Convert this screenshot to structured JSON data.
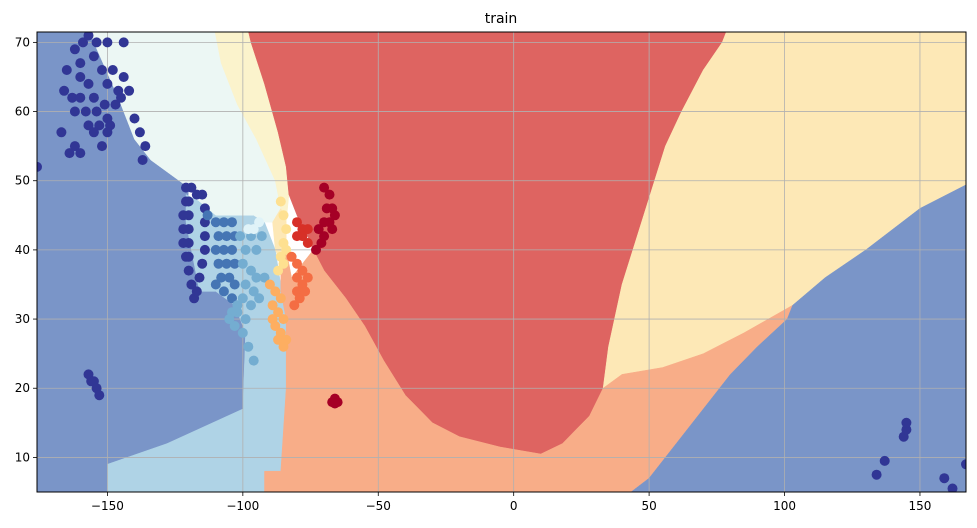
{
  "chart_data": {
    "type": "scatter",
    "title": "train",
    "xlabel": "",
    "ylabel": "",
    "xlim": [
      -176,
      167
    ],
    "ylim": [
      5,
      71.5
    ],
    "xticks": [
      -150,
      -100,
      -50,
      0,
      50,
      100,
      150
    ],
    "yticks": [
      10,
      20,
      30,
      40,
      50,
      60,
      70
    ],
    "grid": true,
    "background": "decision regions (filled contour)",
    "region_colors": {
      "dark_blue": "#7a95c8",
      "light_blue": "#afd3e6",
      "pale_cyan": "#ecf7f4",
      "pale_yellow": "#fbf3cc",
      "yellow": "#fde8b6",
      "orange": "#f8ad88",
      "red": "#de6461"
    },
    "point_colors": {
      "navy": "#313695",
      "steel": "#4575b4",
      "sky": "#74add1",
      "pale": "#e0f3f8",
      "lightyellow": "#fee090",
      "sand": "#fdae61",
      "orange": "#f46d43",
      "red": "#d73027",
      "crimson": "#a50026"
    },
    "series": [
      {
        "color": "navy",
        "points": [
          [
            -159,
            70
          ],
          [
            -157,
            71
          ],
          [
            -154,
            70
          ],
          [
            -150,
            70
          ],
          [
            -144,
            70
          ],
          [
            -162,
            69
          ],
          [
            -165,
            66
          ],
          [
            -160,
            67
          ],
          [
            -155,
            68
          ],
          [
            -152,
            66
          ],
          [
            -148,
            66
          ],
          [
            -144,
            65
          ],
          [
            -160,
            65
          ],
          [
            -157,
            64
          ],
          [
            -150,
            64
          ],
          [
            -146,
            63
          ],
          [
            -142,
            63
          ],
          [
            -166,
            63
          ],
          [
            -163,
            62
          ],
          [
            -160,
            62
          ],
          [
            -155,
            62
          ],
          [
            -151,
            61
          ],
          [
            -147,
            61
          ],
          [
            -145,
            62
          ],
          [
            -162,
            60
          ],
          [
            -158,
            60
          ],
          [
            -154,
            60
          ],
          [
            -150,
            59
          ],
          [
            -157,
            58
          ],
          [
            -153,
            58
          ],
          [
            -149,
            58
          ],
          [
            -155,
            57
          ],
          [
            -150,
            57
          ],
          [
            -152,
            55
          ],
          [
            -140,
            59
          ],
          [
            -138,
            57
          ],
          [
            -136,
            55
          ],
          [
            -137,
            53
          ],
          [
            -167,
            57
          ],
          [
            -162,
            55
          ],
          [
            -160,
            54
          ],
          [
            -164,
            54
          ],
          [
            -176,
            52
          ],
          [
            -120,
            47
          ],
          [
            -120,
            45
          ],
          [
            -120,
            43
          ],
          [
            -120,
            41
          ],
          [
            -120,
            39
          ],
          [
            -120,
            37
          ],
          [
            -119,
            35
          ],
          [
            -118,
            33
          ],
          [
            -117,
            34
          ],
          [
            -116,
            36
          ],
          [
            -115,
            38
          ],
          [
            -114,
            40
          ],
          [
            -114,
            42
          ],
          [
            -114,
            44
          ],
          [
            -114,
            46
          ],
          [
            -115,
            48
          ],
          [
            -117,
            48
          ],
          [
            -119,
            49
          ],
          [
            -121,
            49
          ],
          [
            -121,
            47
          ],
          [
            -122,
            45
          ],
          [
            -122,
            43
          ],
          [
            -122,
            41
          ],
          [
            -121,
            39
          ],
          [
            -157,
            22
          ],
          [
            -156,
            21
          ],
          [
            -155,
            21
          ],
          [
            -154,
            20
          ],
          [
            -153,
            19
          ],
          [
            134,
            7.5
          ],
          [
            137,
            9.5
          ],
          [
            144,
            13
          ],
          [
            145,
            14
          ],
          [
            145,
            15
          ],
          [
            159,
            7
          ],
          [
            162,
            5.5
          ],
          [
            167,
            9
          ]
        ]
      },
      {
        "color": "steel",
        "points": [
          [
            -113,
            45
          ],
          [
            -110,
            44
          ],
          [
            -107,
            44
          ],
          [
            -104,
            44
          ],
          [
            -109,
            42
          ],
          [
            -106,
            42
          ],
          [
            -103,
            42
          ],
          [
            -110,
            40
          ],
          [
            -107,
            40
          ],
          [
            -104,
            40
          ],
          [
            -103,
            38
          ],
          [
            -109,
            38
          ],
          [
            -106,
            38
          ],
          [
            -108,
            36
          ],
          [
            -105,
            36
          ],
          [
            -103,
            35
          ],
          [
            -107,
            34
          ],
          [
            -104,
            33
          ],
          [
            -110,
            35
          ]
        ]
      },
      {
        "color": "sky",
        "points": [
          [
            -101,
            42
          ],
          [
            -99,
            40
          ],
          [
            -97,
            42
          ],
          [
            -95,
            40
          ],
          [
            -93,
            42
          ],
          [
            -100,
            38
          ],
          [
            -97,
            37
          ],
          [
            -95,
            36
          ],
          [
            -92,
            36
          ],
          [
            -99,
            35
          ],
          [
            -96,
            34
          ],
          [
            -100,
            33
          ],
          [
            -97,
            32
          ],
          [
            -94,
            33
          ],
          [
            -102,
            31
          ],
          [
            -99,
            30
          ],
          [
            -100,
            28
          ],
          [
            -98,
            26
          ],
          [
            -96,
            24
          ],
          [
            -102,
            32
          ],
          [
            -104,
            31
          ],
          [
            -103,
            29
          ],
          [
            -105,
            30
          ]
        ]
      },
      {
        "color": "pale",
        "points": [
          [
            -98,
            43
          ],
          [
            -96,
            43
          ],
          [
            -94,
            44
          ]
        ]
      },
      {
        "color": "lightyellow",
        "points": [
          [
            -86,
            47
          ],
          [
            -85,
            45
          ],
          [
            -84,
            43
          ],
          [
            -85,
            41
          ],
          [
            -86,
            39
          ],
          [
            -87,
            37
          ],
          [
            -85,
            38
          ],
          [
            -84,
            40
          ]
        ]
      },
      {
        "color": "sand",
        "points": [
          [
            -90,
            35
          ],
          [
            -88,
            34
          ],
          [
            -86,
            33
          ],
          [
            -89,
            32
          ],
          [
            -87,
            31
          ],
          [
            -85,
            30
          ],
          [
            -88,
            29
          ],
          [
            -86,
            28
          ],
          [
            -87,
            27
          ],
          [
            -85,
            26
          ],
          [
            -84,
            27
          ],
          [
            -89,
            30
          ]
        ]
      },
      {
        "color": "orange",
        "points": [
          [
            -82,
            39
          ],
          [
            -80,
            38
          ],
          [
            -78,
            37
          ],
          [
            -80,
            36
          ],
          [
            -78,
            35
          ],
          [
            -80,
            34
          ],
          [
            -79,
            33
          ],
          [
            -81,
            32
          ],
          [
            -77,
            34
          ],
          [
            -76,
            36
          ]
        ]
      },
      {
        "color": "red",
        "points": [
          [
            -80,
            44
          ],
          [
            -78,
            43
          ],
          [
            -76,
            43
          ],
          [
            -78,
            42
          ],
          [
            -80,
            42
          ],
          [
            -76,
            41
          ]
        ]
      },
      {
        "color": "crimson",
        "points": [
          [
            -70,
            49
          ],
          [
            -68,
            48
          ],
          [
            -69,
            46
          ],
          [
            -67,
            46
          ],
          [
            -70,
            44
          ],
          [
            -68,
            44
          ],
          [
            -66,
            45
          ],
          [
            -72,
            43
          ],
          [
            -71,
            41
          ],
          [
            -73,
            40
          ],
          [
            -70,
            42
          ],
          [
            -67,
            43
          ],
          [
            -66,
            18.5
          ],
          [
            -65,
            18
          ],
          [
            -67,
            18
          ],
          [
            -66,
            17.8
          ]
        ]
      }
    ]
  }
}
